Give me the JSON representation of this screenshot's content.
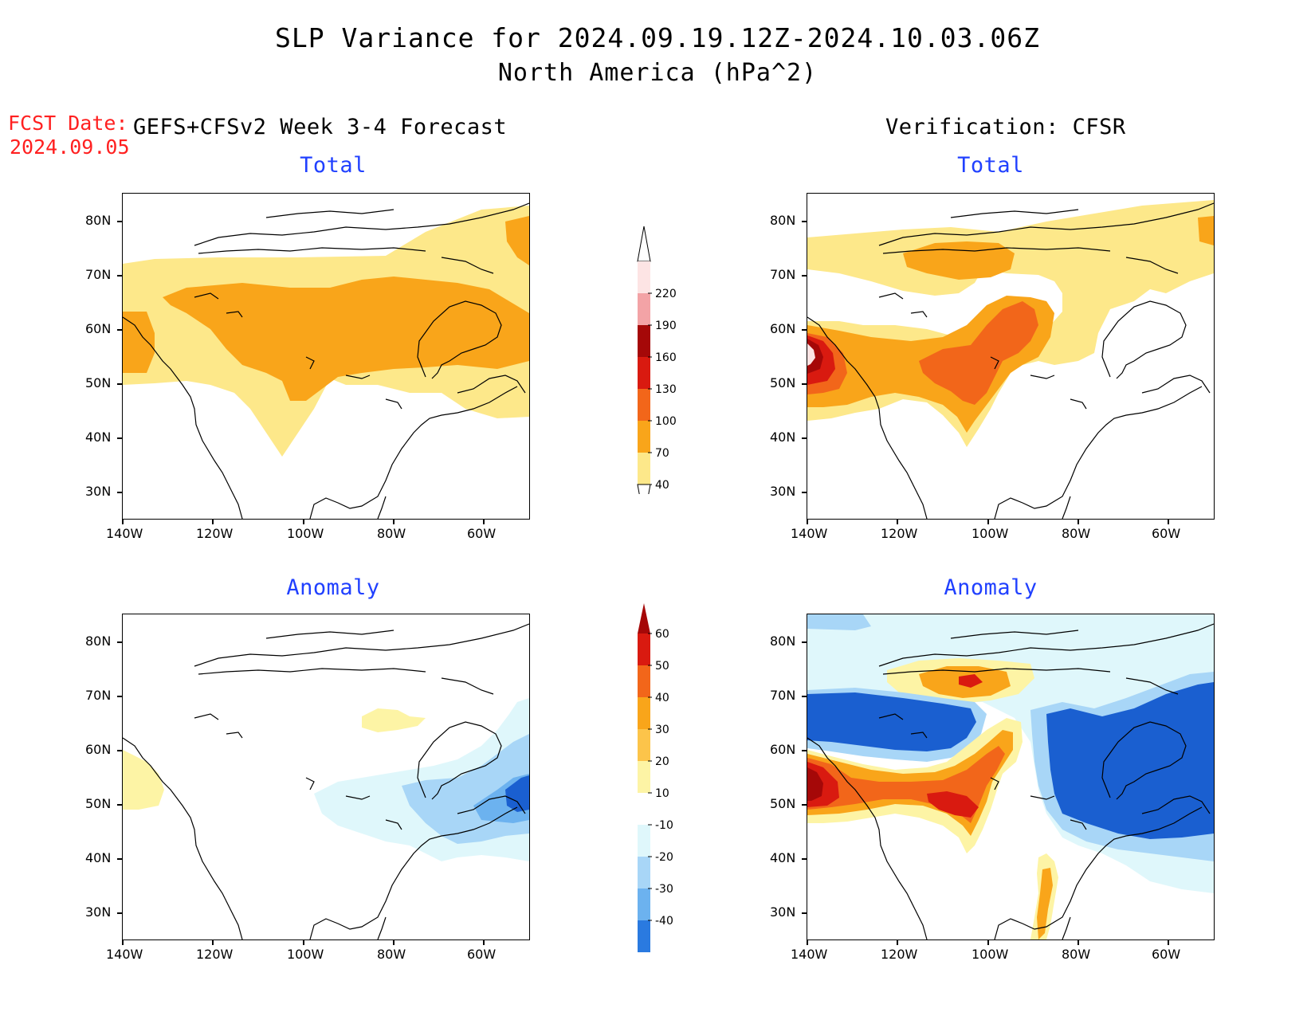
{
  "title": {
    "line1": "SLP Variance for 2024.09.19.12Z-2024.10.03.06Z",
    "line2": "North America (hPa^2)"
  },
  "forecast_date": {
    "label": "FCST Date:",
    "value": "2024.09.05"
  },
  "columns": {
    "left": "GEFS+CFSv2 Week 3-4 Forecast",
    "right": "Verification: CFSR"
  },
  "panels": {
    "total_fcst_title": "Total",
    "total_verif_title": "Total",
    "anom_fcst_title": "Anomaly",
    "anom_verif_title": "Anomaly"
  },
  "axes": {
    "lat_labels": [
      "80N",
      "70N",
      "60N",
      "50N",
      "40N",
      "30N"
    ],
    "lon_labels": [
      "140W",
      "120W",
      "100W",
      "80W",
      "60W"
    ]
  },
  "colorbars": {
    "total": {
      "levels": [
        "40",
        "70",
        "100",
        "130",
        "160",
        "190",
        "220"
      ],
      "colors": [
        "#fde88a",
        "#f9a51a",
        "#f2661a",
        "#d91a10",
        "#a50808",
        "#f3a3a6",
        "#fde4e4"
      ]
    },
    "anomaly": {
      "levels": [
        "60",
        "50",
        "40",
        "30",
        "20",
        "10",
        "-10",
        "-20",
        "-30",
        "-40"
      ],
      "colors": [
        "#a50808",
        "#d91a10",
        "#f2661a",
        "#f9a51a",
        "#fcc44a",
        "#fdf4a5",
        "#ffffff",
        "#dff7fb",
        "#a8d6f7",
        "#6cb2ef",
        "#2a7ae0",
        "#1a5fd0"
      ]
    }
  },
  "colors": {
    "light_yellow": "#fde88a",
    "orange": "#f9a51a",
    "dark_orange": "#f2661a",
    "red": "#d91a10",
    "dark_red": "#a50808",
    "pale_yellow": "#fdf4a5",
    "pale_cyan": "#dff7fb",
    "light_blue": "#a8d6f7",
    "mid_blue": "#6cb2ef",
    "deep_blue": "#1a5fd0",
    "title_blue": "#2040ff",
    "fcst_red": "#ff2020"
  }
}
